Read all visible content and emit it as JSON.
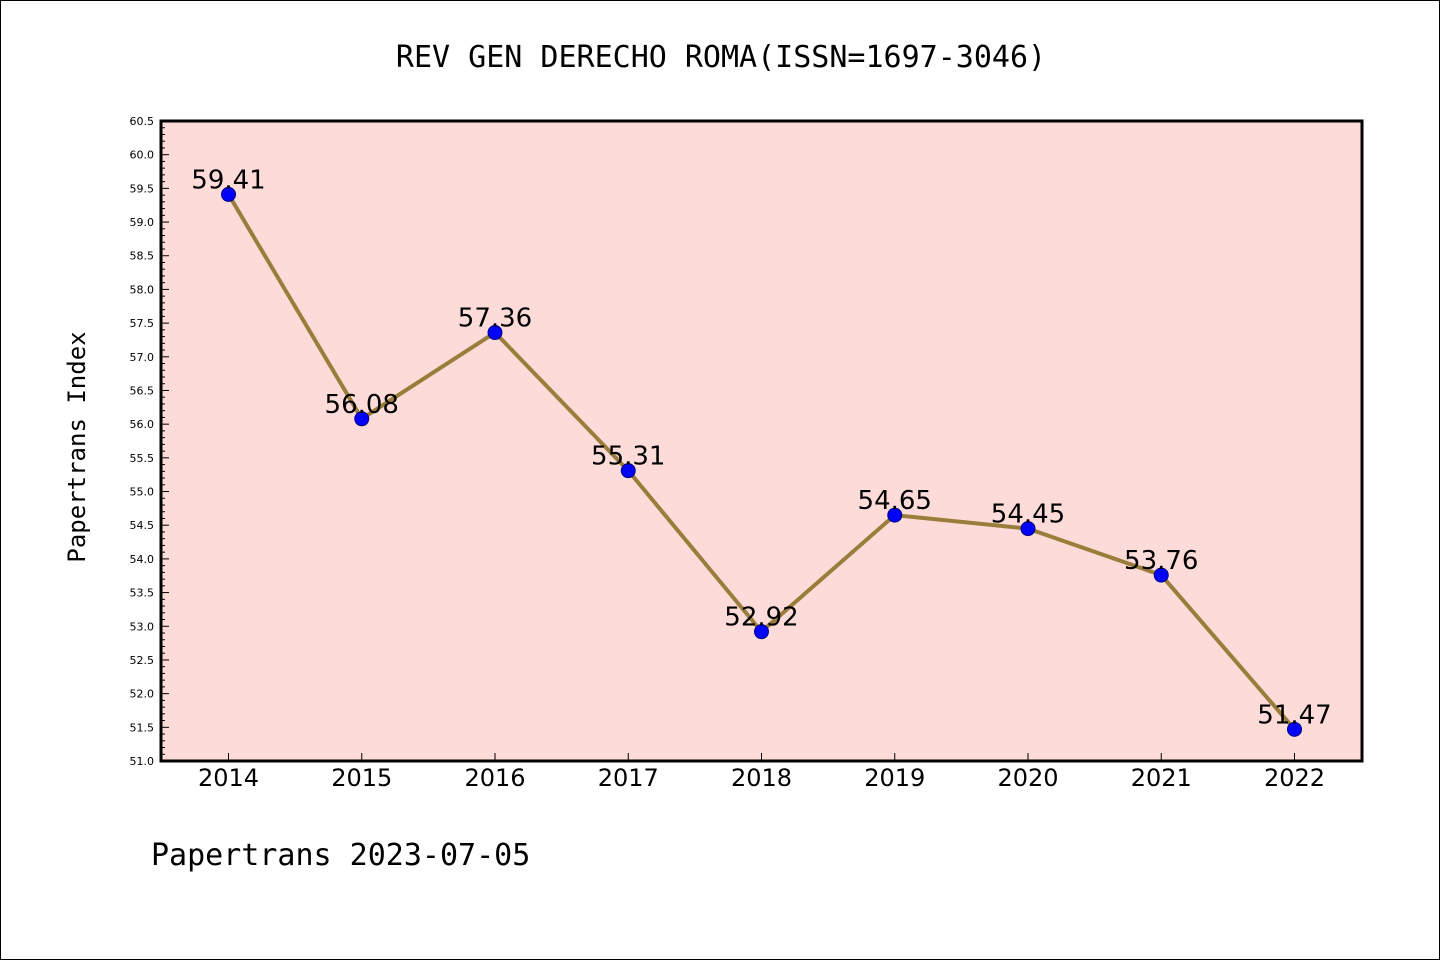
{
  "footer": {
    "text": "Papertrans 2023-07-05"
  },
  "colors": {
    "plot_background": "#fddbd9",
    "line": "#9a7d3a",
    "marker": "#0000ff",
    "marker_edge": "#000080",
    "axes": "#000000"
  },
  "chart_data": {
    "type": "line",
    "title": "REV GEN DERECHO ROMA(ISSN=1697-3046)",
    "xlabel": "",
    "ylabel": "Papertrans Index",
    "categories": [
      "2014",
      "2015",
      "2016",
      "2017",
      "2018",
      "2019",
      "2020",
      "2021",
      "2022"
    ],
    "series": [
      {
        "values": [
          59.41,
          56.08,
          57.36,
          55.31,
          52.92,
          54.65,
          54.45,
          53.76,
          51.47
        ],
        "labels": [
          "59.41",
          "56.08",
          "57.36",
          "55.31",
          "52.92",
          "54.65",
          "54.45",
          "53.76",
          "51.47"
        ]
      }
    ],
    "ylim": [
      51.0,
      60.5
    ],
    "yticks": [
      51.0,
      51.5,
      52.0,
      52.5,
      53.0,
      53.5,
      54.0,
      54.5,
      55.0,
      55.5,
      56.0,
      56.5,
      57.0,
      57.5,
      58.0,
      58.5,
      59.0,
      59.5,
      60.0,
      60.5
    ],
    "ytick_labels": [
      "51.0",
      "51.5",
      "52.0",
      "52.5",
      "53.0",
      "53.5",
      "54.0",
      "54.5",
      "55.0",
      "55.5",
      "56.0",
      "56.5",
      "57.0",
      "57.5",
      "58.0",
      "58.5",
      "59.0",
      "59.5",
      "60.0",
      "60.5"
    ],
    "grid": false,
    "legend": "none"
  }
}
